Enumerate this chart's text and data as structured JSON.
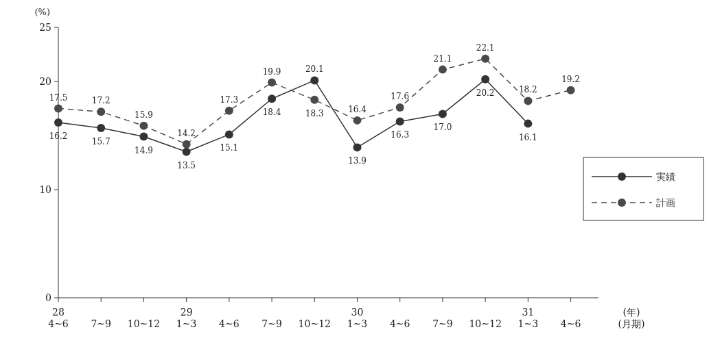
{
  "chart_data": {
    "type": "line",
    "ylabel": "(%)",
    "xlabel": "(年)\n(月期)",
    "categories": [
      "28\n4~6",
      "7~9",
      "10~12",
      "29\n1~3",
      "4~6",
      "7~9",
      "10~12",
      "30\n1~3",
      "4~6",
      "7~9",
      "10~12",
      "31\n1~3",
      "4~6"
    ],
    "series": [
      {
        "name": "実績",
        "color": "#333333",
        "line_style": "solid",
        "values": [
          16.2,
          15.7,
          14.9,
          13.5,
          15.1,
          18.4,
          20.1,
          13.9,
          16.3,
          17.0,
          20.2,
          16.1,
          null
        ],
        "value_labels": [
          "16.2",
          "15.7",
          "14.9",
          "13.5",
          "15.1",
          "18.4",
          "20.1",
          "13.9",
          "16.3",
          "17.0",
          "20.2",
          "16.1",
          null
        ]
      },
      {
        "name": "計画",
        "color": "#4a4a4a",
        "line_style": "dashed",
        "values": [
          17.5,
          17.2,
          15.9,
          14.2,
          17.3,
          19.9,
          18.3,
          16.4,
          17.6,
          21.1,
          22.1,
          18.2,
          19.2
        ],
        "value_labels": [
          "17.5",
          "17.2",
          "15.9",
          "14.2",
          "17.3",
          "19.9",
          "18.3",
          "16.4",
          "17.6",
          "21.1",
          "22.1",
          "18.2",
          "19.2"
        ]
      }
    ],
    "ylim": [
      0,
      25
    ],
    "yticks": [
      0,
      10,
      20,
      25
    ],
    "marker": "circle",
    "legend": "right"
  }
}
